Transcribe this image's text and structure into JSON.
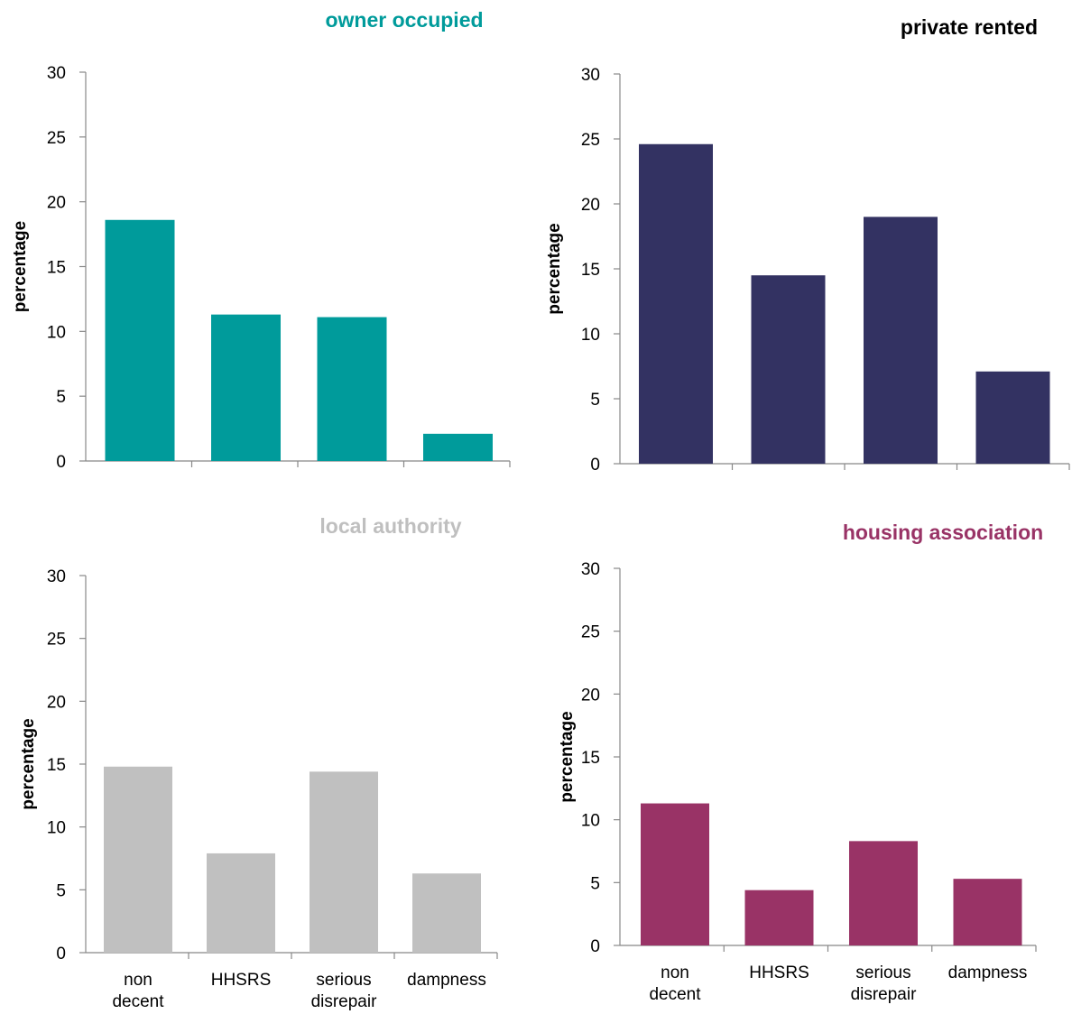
{
  "chart_data": [
    {
      "type": "bar",
      "title": "owner occupied",
      "title_color": "#009B9B",
      "bar_color": "#009B9B",
      "categories": [
        "non decent",
        "HHSRS",
        "serious disrepair",
        "dampness"
      ],
      "category_labels_visible": false,
      "values": [
        18.6,
        11.3,
        11.1,
        2.1
      ],
      "ylabel": "percentage",
      "ylim": [
        0,
        30
      ],
      "yticks": [
        0,
        5,
        10,
        15,
        20,
        25,
        30
      ],
      "grid": false
    },
    {
      "type": "bar",
      "title": "private rented",
      "title_color": "#000000",
      "bar_color": "#333262",
      "categories": [
        "non decent",
        "HHSRS",
        "serious disrepair",
        "dampness"
      ],
      "category_labels_visible": false,
      "values": [
        24.6,
        14.5,
        19.0,
        7.1
      ],
      "ylabel": "percentage",
      "ylim": [
        0,
        30
      ],
      "yticks": [
        0,
        5,
        10,
        15,
        20,
        25,
        30
      ],
      "grid": false
    },
    {
      "type": "bar",
      "title": "local authority",
      "title_color": "#BFBFBF",
      "bar_color": "#C0C0C0",
      "categories": [
        "non decent",
        "HHSRS",
        "serious disrepair",
        "dampness"
      ],
      "category_labels": [
        [
          "non",
          "decent"
        ],
        [
          "HHSRS"
        ],
        [
          "serious",
          "disrepair"
        ],
        [
          "dampness"
        ]
      ],
      "category_labels_visible": true,
      "values": [
        14.8,
        7.9,
        14.4,
        6.3
      ],
      "ylabel": "percentage",
      "ylim": [
        0,
        30
      ],
      "yticks": [
        0,
        5,
        10,
        15,
        20,
        25,
        30
      ],
      "grid": false
    },
    {
      "type": "bar",
      "title": "housing association",
      "title_color": "#993366",
      "bar_color": "#993366",
      "categories": [
        "non decent",
        "HHSRS",
        "serious disrepair",
        "dampness"
      ],
      "category_labels": [
        [
          "non",
          "decent"
        ],
        [
          "HHSRS"
        ],
        [
          "serious",
          "disrepair"
        ],
        [
          "dampness"
        ]
      ],
      "category_labels_visible": true,
      "values": [
        11.3,
        4.4,
        8.3,
        5.3
      ],
      "ylabel": "percentage",
      "ylim": [
        0,
        30
      ],
      "yticks": [
        0,
        5,
        10,
        15,
        20,
        25,
        30
      ],
      "grid": false
    }
  ]
}
